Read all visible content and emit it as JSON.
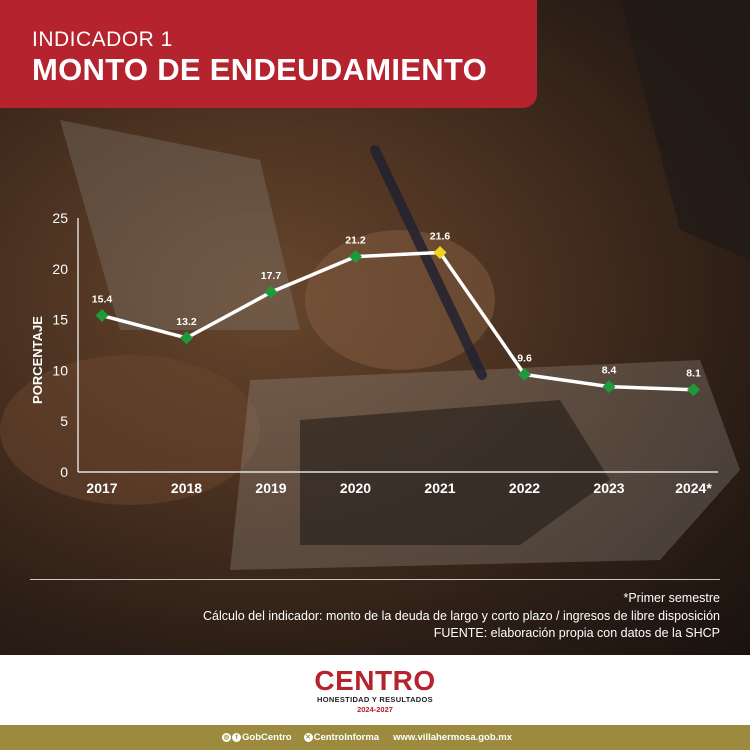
{
  "header": {
    "subtitle": "INDICADOR 1",
    "title": "MONTO DE ENDEUDAMIENTO"
  },
  "chart_data": {
    "type": "line",
    "categories": [
      "2017",
      "2018",
      "2019",
      "2020",
      "2021",
      "2022",
      "2023",
      "2024*"
    ],
    "values": [
      15.4,
      13.2,
      17.7,
      21.2,
      21.6,
      9.6,
      8.4,
      8.1
    ],
    "data_labels": [
      "15.4",
      "13.2",
      "17.7",
      "21.2",
      "21.6",
      "9.6",
      "8.4",
      "8.1"
    ],
    "ylabel": "PORCENTAJE",
    "xlabel": "",
    "ylim": [
      0,
      25
    ],
    "yticks": [
      0,
      5,
      10,
      15,
      20,
      25
    ],
    "grid": false,
    "line_color": "#ffffff",
    "marker_color": "#1f9a3a",
    "highlight_index": 4,
    "highlight_color": "#f2d21b"
  },
  "notes": {
    "footnote": "*Primer semestre",
    "calculation": "Cálculo del indicador: monto de la deuda de largo y corto plazo / ingresos de libre disposición",
    "source": "FUENTE: elaboración propia con datos de la SHCP"
  },
  "logo": {
    "name": "CENTRO",
    "slogan": "HONESTIDAD Y RESULTADOS",
    "years": "2024-2027"
  },
  "footer": {
    "social_1": "GobCentro",
    "social_2": "CentroInforma",
    "website": "www.villahermosa.gob.mx"
  },
  "colors": {
    "brand_red": "#b5232f",
    "footer_gold": "#9c8a3e"
  }
}
